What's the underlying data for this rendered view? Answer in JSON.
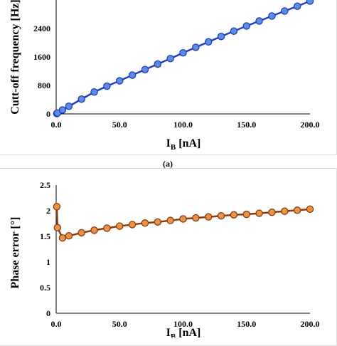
{
  "chart_data": [
    {
      "type": "line",
      "panel_label": "(a)",
      "ylabel": "Cutt-off frequency [Hz]",
      "xlabel_main": "I",
      "xlabel_sub": "B",
      "xlabel_unit": " [nA]",
      "xlim": [
        0,
        200
      ],
      "ylim": [
        0,
        3200
      ],
      "x_ticks": [
        0,
        50,
        100,
        150,
        200
      ],
      "x_tick_labels": [
        "0.0",
        "50.0",
        "100.0",
        "150.0",
        "200.0"
      ],
      "y_ticks": [
        0,
        800,
        1600,
        2400
      ],
      "y_tick_labels": [
        "0",
        "800",
        "1600",
        "2400"
      ],
      "grid": false,
      "colors": {
        "line": "#1f3fbf",
        "marker_fill": "#5b8ee0",
        "marker_edge": "#1f3fbf"
      },
      "series": [
        {
          "x": [
            0.5,
            1,
            5,
            10,
            20,
            30,
            40,
            50,
            60,
            70,
            80,
            90,
            100,
            110,
            120,
            130,
            140,
            150,
            160,
            170,
            180,
            190,
            200
          ],
          "y": [
            10,
            25,
            110,
            215,
            415,
            615,
            780,
            930,
            1090,
            1245,
            1400,
            1555,
            1715,
            1870,
            2025,
            2175,
            2325,
            2470,
            2610,
            2750,
            2890,
            3025,
            3170
          ]
        }
      ]
    },
    {
      "type": "line",
      "ylabel": "Phase error [°]",
      "xlabel_main": "I",
      "xlabel_sub": "B",
      "xlabel_unit": " [nA]",
      "xlim": [
        0,
        200
      ],
      "ylim": [
        0,
        2.5
      ],
      "x_ticks": [
        0,
        50,
        100,
        150,
        200
      ],
      "x_tick_labels": [
        "0.0",
        "50.0",
        "100.0",
        "150.0",
        "200.0"
      ],
      "y_ticks": [
        0,
        0.5,
        1,
        1.5,
        2,
        2.5
      ],
      "y_tick_labels": [
        "0",
        "0.5",
        "1",
        "1.5",
        "2",
        "2.5"
      ],
      "grid": false,
      "colors": {
        "line": "#8b3a0e",
        "marker_fill": "#e8924a",
        "marker_edge": "#8b3a0e"
      },
      "series": [
        {
          "x": [
            0.5,
            1,
            5,
            10,
            20,
            30,
            40,
            50,
            60,
            70,
            80,
            90,
            100,
            110,
            120,
            130,
            140,
            150,
            160,
            170,
            180,
            190,
            200
          ],
          "y": [
            2.08,
            1.67,
            1.47,
            1.51,
            1.57,
            1.62,
            1.66,
            1.7,
            1.73,
            1.76,
            1.78,
            1.81,
            1.84,
            1.86,
            1.88,
            1.9,
            1.92,
            1.93,
            1.95,
            1.97,
            1.99,
            2.01,
            2.03
          ]
        }
      ]
    }
  ]
}
